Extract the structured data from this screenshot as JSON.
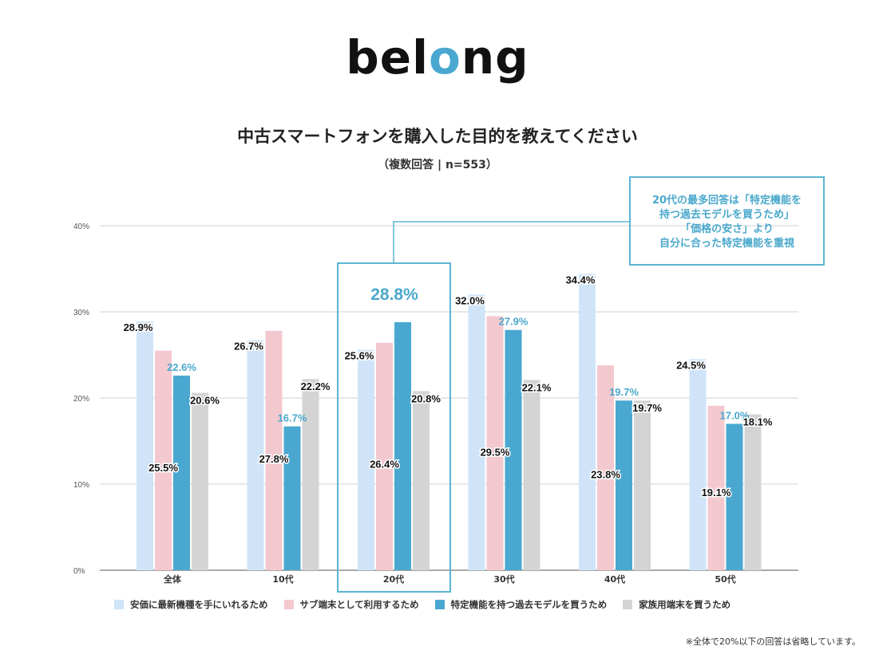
{
  "logo": {
    "text_pre": "bel",
    "text_o": "o",
    "text_post": "ng"
  },
  "title": "中古スマートフォンを購入した目的を教えてください",
  "subtitle": "（複数回答 | n=553）",
  "annotation": [
    "20代の最多回答は「特定機能を",
    "持つ過去モデルを買うため」",
    "「価格の安さ」より",
    "自分に合った特定機能を重視"
  ],
  "footnote": "※全体で20%以下の回答は省略しています。",
  "colors": {
    "s1": "#cfe4f8",
    "s2": "#f3c9cf",
    "s3": "#4aa8d0",
    "s4": "#d4d4d4",
    "accent": "#4aa8cc"
  },
  "chart_data": {
    "type": "bar",
    "title": "中古スマートフォンを購入した目的を教えてください",
    "categories": [
      "全体",
      "10代",
      "20代",
      "30代",
      "40代",
      "50代"
    ],
    "ylim": [
      0,
      40
    ],
    "yticks": [
      "0%",
      "10%",
      "20%",
      "30%",
      "40%"
    ],
    "grid": true,
    "legend_position": "bottom",
    "highlight_category": "20代",
    "series": [
      {
        "name": "安価に最新機種を手にいれるため",
        "values": [
          28.9,
          26.7,
          25.6,
          32.0,
          34.4,
          24.5
        ],
        "labels": [
          "28.9%",
          "26.7%",
          "25.6%",
          "32.0%",
          "34.4%",
          "24.5%"
        ]
      },
      {
        "name": "サブ端末として利用するため",
        "values": [
          25.5,
          27.8,
          26.4,
          29.5,
          23.8,
          19.1
        ],
        "labels": [
          "25.5%",
          "27.8%",
          "26.4%",
          "29.5%",
          "23.8%",
          "19.1%"
        ]
      },
      {
        "name": "特定機能を持つ過去モデルを買うため",
        "values": [
          22.6,
          16.7,
          28.8,
          27.9,
          19.7,
          17.0
        ],
        "labels": [
          "22.6%",
          "16.7%",
          "28.8%",
          "27.9%",
          "19.7%",
          "17.0%"
        ]
      },
      {
        "name": "家族用端末を買うため",
        "values": [
          20.6,
          22.2,
          20.8,
          22.1,
          19.7,
          18.1
        ],
        "labels": [
          "20.6%",
          "22.2%",
          "20.8%",
          "22.1%",
          "19.7%",
          "18.1%"
        ]
      }
    ]
  }
}
